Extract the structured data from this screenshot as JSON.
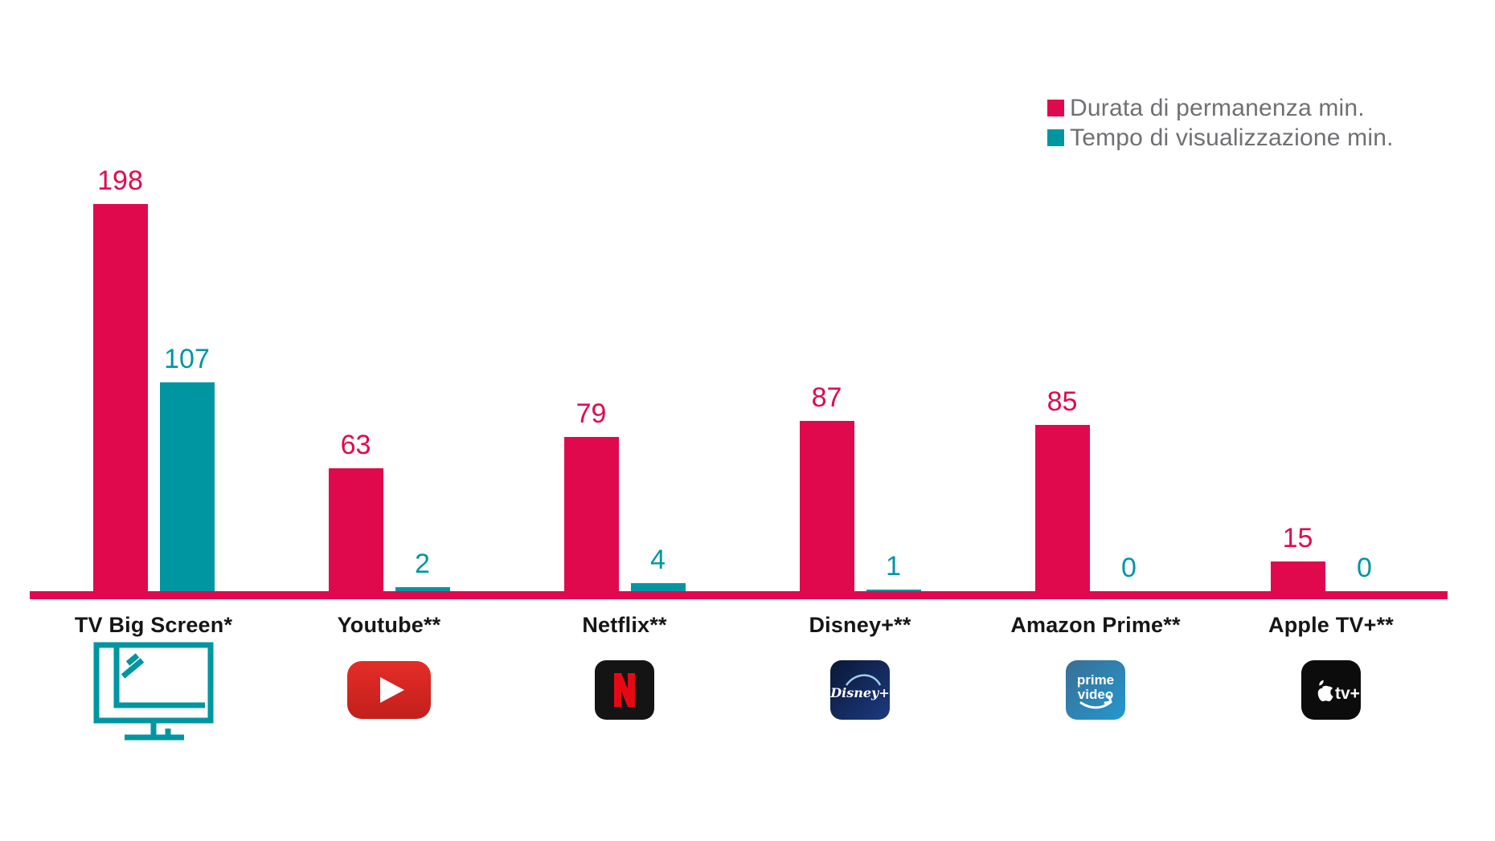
{
  "legend": {
    "items": [
      {
        "label": "Durata di permanenza min.",
        "color": "#E1094E"
      },
      {
        "label": "Tempo di visualizzazione min.",
        "color": "#0096A1"
      }
    ]
  },
  "chart_data": {
    "type": "bar",
    "categories": [
      "TV Big Screen*",
      "Youtube**",
      "Netflix**",
      "Disney+**",
      "Amazon Prime**",
      "Apple TV+**"
    ],
    "series": [
      {
        "name": "Durata di permanenza min.",
        "color": "#E1094E",
        "values": [
          198,
          63,
          79,
          87,
          85,
          15
        ]
      },
      {
        "name": "Tempo di visualizzazione min.",
        "color": "#0096A1",
        "values": [
          107,
          2,
          4,
          1,
          0,
          0
        ]
      }
    ],
    "title": "",
    "xlabel": "",
    "ylabel": "",
    "ylim": [
      0,
      210
    ],
    "grid": false,
    "legend_position": "top-right",
    "value_labels": true,
    "axis_line_color": "#E1094E"
  },
  "icons": [
    {
      "name": "tv-big-screen-icon",
      "color": "#0096A1"
    },
    {
      "name": "youtube-icon"
    },
    {
      "name": "netflix-icon",
      "letter": "N"
    },
    {
      "name": "disney-plus-icon",
      "text": "Disney+"
    },
    {
      "name": "prime-video-icon",
      "line1": "prime",
      "line2": "video"
    },
    {
      "name": "apple-tv-icon",
      "text": "tv+"
    }
  ]
}
